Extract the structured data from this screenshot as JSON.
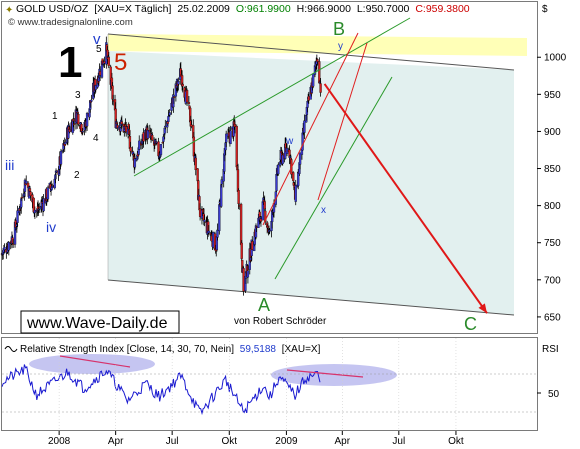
{
  "header": {
    "symbol": "GOLD USD/OZ",
    "ticker": "[XAU=X  Täglich]",
    "date": "25.02.2009",
    "ohlc": {
      "open": "O:961.9900",
      "high": "H:966.9000",
      "low": "L:950.7000",
      "close": "C:959.3800"
    },
    "currency_label": "$",
    "source": "© www.tradesignalonline.com",
    "colors": {
      "open": "#008000",
      "high": "#000000",
      "low": "#000000",
      "close": "#cc0000"
    }
  },
  "watermark": "www.Wave-Daily.de",
  "author": "von Robert Schröder",
  "wave_labels": {
    "big_1": "1",
    "big_5": "5",
    "small": [
      "1",
      "2",
      "3",
      "4",
      "5"
    ],
    "roman": [
      "iii",
      "iv",
      "v"
    ],
    "letters": [
      "A",
      "B",
      "C"
    ],
    "sub": [
      "w",
      "x",
      "y"
    ]
  },
  "rsi": {
    "title": "Relative Strength Index [Close, 14, 30, 70, Nein]",
    "value": "59,5188",
    "symbol": "[XAU=X]",
    "axis_label": "RSI",
    "ticks": [
      "50"
    ]
  },
  "x_ticks": [
    "2008",
    "Apr",
    "Jul",
    "Okt",
    "2009",
    "Apr",
    "Jul",
    "Okt"
  ],
  "chart_data": {
    "type": "candlestick",
    "title": "GOLD USD/OZ",
    "ylim": [
      630,
      1050
    ],
    "y_ticks": [
      650,
      700,
      750,
      800,
      850,
      900,
      950,
      1000
    ],
    "x_ticks": [
      "2008",
      "Apr",
      "Jul",
      "Okt",
      "2009",
      "Apr",
      "Jul",
      "Okt"
    ],
    "price_path": [
      [
        "2007-10-01",
        735
      ],
      [
        "2007-10-20",
        760
      ],
      [
        "2007-11-08",
        835
      ],
      [
        "2007-11-25",
        790
      ],
      [
        "2007-12-10",
        810
      ],
      [
        "2007-12-28",
        840
      ],
      [
        "2008-01-15",
        900
      ],
      [
        "2008-01-30",
        925
      ],
      [
        "2008-02-10",
        900
      ],
      [
        "2008-02-25",
        955
      ],
      [
        "2008-03-17",
        1010
      ],
      [
        "2008-04-01",
        915
      ],
      [
        "2008-04-20",
        900
      ],
      [
        "2008-05-01",
        860
      ],
      [
        "2008-05-20",
        900
      ],
      [
        "2008-06-10",
        870
      ],
      [
        "2008-06-25",
        920
      ],
      [
        "2008-07-15",
        980
      ],
      [
        "2008-08-01",
        910
      ],
      [
        "2008-08-15",
        790
      ],
      [
        "2008-09-10",
        745
      ],
      [
        "2008-09-25",
        885
      ],
      [
        "2008-10-10",
        905
      ],
      [
        "2008-10-24",
        690
      ],
      [
        "2008-11-10",
        760
      ],
      [
        "2008-11-25",
        800
      ],
      [
        "2008-12-05",
        760
      ],
      [
        "2008-12-20",
        860
      ],
      [
        "2009-01-05",
        880
      ],
      [
        "2009-01-15",
        810
      ],
      [
        "2009-02-01",
        920
      ],
      [
        "2009-02-20",
        1000
      ],
      [
        "2009-02-25",
        959
      ]
    ],
    "forecast": {
      "from": [
        "2009-02-25",
        960
      ],
      "to": [
        "2009-11-20",
        655
      ]
    },
    "rsi_path": [
      [
        "2007-10-01",
        62
      ],
      [
        "2007-11-08",
        75
      ],
      [
        "2007-11-25",
        48
      ],
      [
        "2008-01-15",
        72
      ],
      [
        "2008-02-10",
        55
      ],
      [
        "2008-03-17",
        74
      ],
      [
        "2008-04-20",
        42
      ],
      [
        "2008-05-20",
        60
      ],
      [
        "2008-06-10",
        46
      ],
      [
        "2008-07-15",
        68
      ],
      [
        "2008-08-15",
        28
      ],
      [
        "2008-09-25",
        64
      ],
      [
        "2008-10-24",
        30
      ],
      [
        "2008-11-25",
        58
      ],
      [
        "2008-12-05",
        45
      ],
      [
        "2008-12-20",
        67
      ],
      [
        "2009-01-15",
        48
      ],
      [
        "2009-02-01",
        66
      ],
      [
        "2009-02-20",
        70
      ],
      [
        "2009-02-25",
        59.5
      ]
    ]
  }
}
